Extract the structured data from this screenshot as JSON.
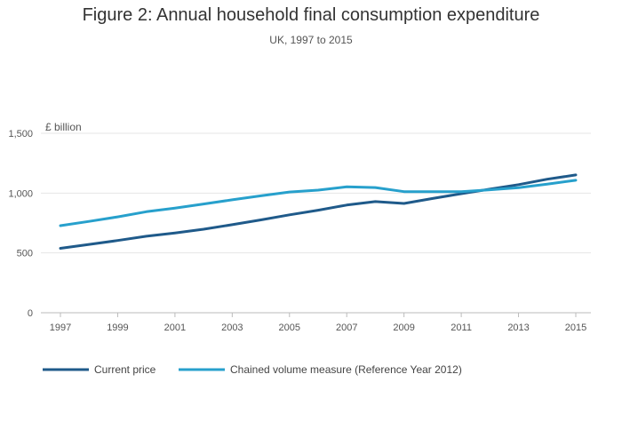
{
  "chart_data": {
    "type": "line",
    "title": "Figure 2: Annual household final consumption expenditure",
    "subtitle": "UK, 1997 to 2015",
    "ylabel": "£ billion",
    "xlabel": "",
    "ylim": [
      0,
      1500
    ],
    "xlim": [
      1997,
      2015
    ],
    "yticks": [
      0,
      500,
      1000,
      1500
    ],
    "ytick_labels": [
      "0",
      "500",
      "1,000",
      "1,500"
    ],
    "xticks": [
      1997,
      1999,
      2001,
      2003,
      2005,
      2007,
      2009,
      2011,
      2013,
      2015
    ],
    "xtick_labels": [
      "1997",
      "1999",
      "2001",
      "2003",
      "2005",
      "2007",
      "2009",
      "2011",
      "2013",
      "2015"
    ],
    "grid": true,
    "legend_position": "bottom-left",
    "x": [
      1997,
      1998,
      1999,
      2000,
      2001,
      2002,
      2003,
      2004,
      2005,
      2006,
      2007,
      2008,
      2009,
      2010,
      2011,
      2012,
      2013,
      2014,
      2015
    ],
    "series": [
      {
        "name": "Current price",
        "color": "#1f5a8a",
        "values": [
          538,
          571,
          604,
          639,
          666,
          698,
          736,
          776,
          818,
          857,
          900,
          929,
          913,
          955,
          995,
          1033,
          1071,
          1116,
          1152
        ]
      },
      {
        "name": "Chained volume measure (Reference Year 2012)",
        "color": "#27a0cc",
        "values": [
          728,
          763,
          801,
          844,
          874,
          909,
          944,
          977,
          1009,
          1025,
          1052,
          1046,
          1012,
          1012,
          1012,
          1028,
          1045,
          1075,
          1107
        ]
      }
    ]
  }
}
